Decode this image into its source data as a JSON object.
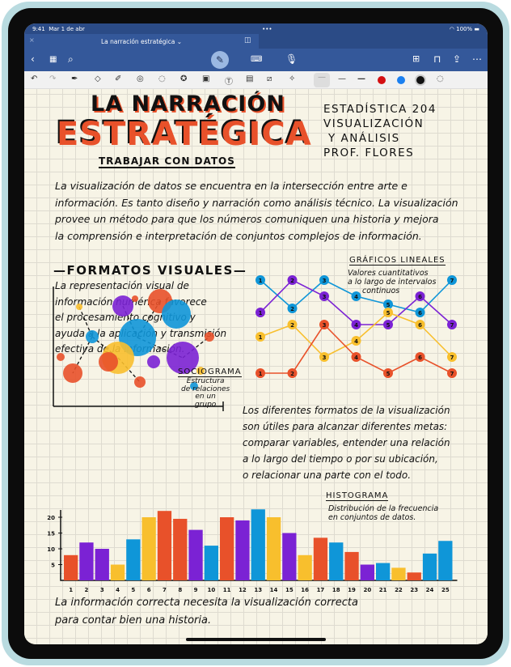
{
  "status": {
    "time": "9:41",
    "date": "Mar 1 de abr",
    "battery": "100%"
  },
  "tab": {
    "title": "La narración estratégica ⌄"
  },
  "colors": {
    "red": "#e8512a",
    "purple": "#7b22d4",
    "yellow": "#f8bf2d",
    "blue": "#0f96d8",
    "chrome": "#34589a"
  },
  "toolbar": {
    "pen_colors": [
      "#d40f12",
      "#1a7ff0",
      "#111111"
    ]
  },
  "note": {
    "title_line1": "LA NARRACIÓN",
    "title_line2": "ESTRATÉGICA",
    "subtitle": "TRABAJAR CON DATOS",
    "course": [
      "ESTADÍSTICA 204",
      "VISUALIZACIÓN",
      "Y ANÁLISIS",
      "PROF. FLORES"
    ],
    "intro": [
      "La visualización de datos se encuentra en la intersección entre arte e",
      "información. Es tanto diseño y narración como análisis técnico. La visualización",
      "provee un método para que los números comuniquen una historia y mejora",
      "la comprensión e interpretación de conjuntos complejos de información."
    ],
    "formats_heading": "FORMATOS VISUALES",
    "formats_text": [
      "La representación visual de",
      "información numérica favorece",
      "el procesamiento cognitivo y",
      "ayuda a la aplicación y transmisión",
      "efectiva de la información."
    ],
    "line_heading": "GRÁFICOS LINEALES",
    "line_desc": [
      "Valores cuantitativos",
      "a lo largo de intervalos",
      "continuos"
    ],
    "socio_heading": "SOCIOGRAMA",
    "socio_desc": [
      "Estructura",
      "de relaciones",
      "en un",
      "grupo"
    ],
    "goals_text": [
      "Los diferentes formatos de la visualización",
      "son útiles para alcanzar diferentes metas:",
      "comparar variables, entender una relación",
      "a lo largo del tiempo o por su ubicación,",
      "o relacionar una parte con el todo."
    ],
    "hist_heading": "HISTOGRAMA",
    "hist_desc": [
      "Distribución de la frecuencia",
      "en conjuntos de datos."
    ],
    "closing": [
      "La información correcta necesita la visualización correcta",
      "para contar bien una historia."
    ]
  },
  "chart_data": [
    {
      "type": "line",
      "title": "GRÁFICOS LINEALES",
      "x": [
        1,
        2,
        3,
        4,
        5,
        6,
        7
      ],
      "series": [
        {
          "color": "#0f96d8",
          "values": [
            12,
            8.5,
            12,
            10,
            9,
            8,
            12
          ]
        },
        {
          "color": "#7b22d4",
          "values": [
            8,
            12,
            10,
            6.5,
            6.5,
            10,
            6.5
          ]
        },
        {
          "color": "#f8bf2d",
          "values": [
            5,
            6.5,
            2.5,
            4.5,
            8,
            6.5,
            2.5
          ]
        },
        {
          "color": "#e8512a",
          "values": [
            0.5,
            0.5,
            6.5,
            2.5,
            0.5,
            2.5,
            0.5
          ]
        }
      ]
    },
    {
      "type": "bar",
      "title": "HISTOGRAMA",
      "categories": [
        "1",
        "2",
        "3",
        "4",
        "5",
        "6",
        "7",
        "8",
        "9",
        "10",
        "11",
        "12",
        "13",
        "14",
        "15",
        "16",
        "17",
        "18",
        "19",
        "20",
        "21",
        "22",
        "23",
        "24",
        "25"
      ],
      "values": [
        8,
        12,
        10,
        5,
        13,
        20,
        22,
        19.5,
        16,
        11,
        20,
        19,
        22.5,
        20,
        15,
        8,
        13.5,
        12,
        9,
        5,
        5.5,
        4,
        2.5,
        8.5,
        12.5
      ],
      "bar_colors": [
        "red",
        "purple",
        "purple",
        "yellow",
        "blue",
        "yellow",
        "red",
        "red",
        "purple",
        "blue",
        "red",
        "purple",
        "blue",
        "yellow",
        "purple",
        "yellow",
        "red",
        "blue",
        "red",
        "purple",
        "blue",
        "yellow",
        "red",
        "blue",
        "blue"
      ],
      "yticks": [
        5,
        10,
        15,
        20
      ],
      "ylim": [
        0,
        24
      ]
    }
  ]
}
